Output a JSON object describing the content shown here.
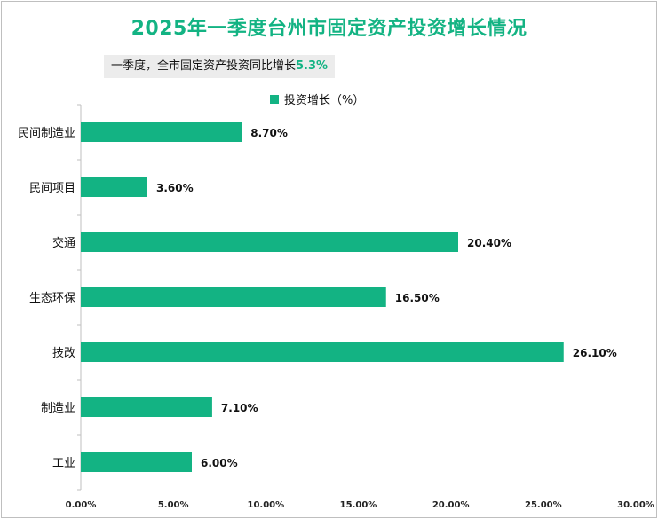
{
  "title": "2025年一季度台州市固定资产投资增长情况",
  "subtitle": {
    "prefix": "一季度，全市固定资产投资同比增长",
    "value": "5.3%"
  },
  "legend": {
    "label": "投资增长（%）"
  },
  "colors": {
    "bar": "#13b383",
    "title": "#13b383"
  },
  "chart_data": {
    "type": "bar",
    "orientation": "horizontal",
    "categories": [
      "民间制造业",
      "民间项目",
      "交通",
      "生态环保",
      "技改",
      "制造业",
      "工业"
    ],
    "series": [
      {
        "name": "投资增长（%）",
        "values": [
          8.7,
          3.6,
          20.4,
          16.5,
          26.1,
          7.1,
          6.0
        ],
        "labels": [
          "8.70%",
          "3.60%",
          "20.40%",
          "16.50%",
          "26.10%",
          "7.10%",
          "6.00%"
        ]
      }
    ],
    "xlim": [
      0,
      30
    ],
    "xticks": [
      "0.00%",
      "5.00%",
      "10.00%",
      "15.00%",
      "20.00%",
      "25.00%",
      "30.00%"
    ],
    "grid": false,
    "legend_position": "top"
  }
}
